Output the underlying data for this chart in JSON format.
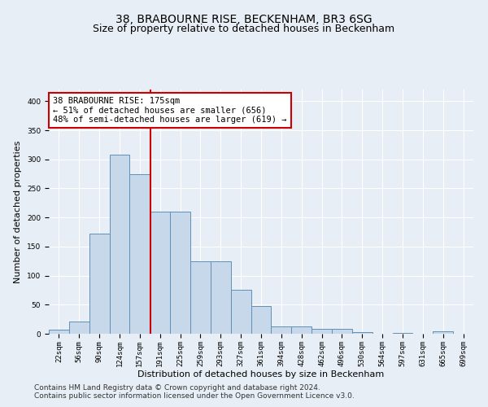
{
  "title": "38, BRABOURNE RISE, BECKENHAM, BR3 6SG",
  "subtitle": "Size of property relative to detached houses in Beckenham",
  "xlabel": "Distribution of detached houses by size in Beckenham",
  "ylabel": "Number of detached properties",
  "bin_labels": [
    "22sqm",
    "56sqm",
    "90sqm",
    "124sqm",
    "157sqm",
    "191sqm",
    "225sqm",
    "259sqm",
    "293sqm",
    "327sqm",
    "361sqm",
    "394sqm",
    "428sqm",
    "462sqm",
    "496sqm",
    "530sqm",
    "564sqm",
    "597sqm",
    "631sqm",
    "665sqm",
    "699sqm"
  ],
  "bar_values": [
    7,
    21,
    172,
    308,
    275,
    210,
    210,
    125,
    125,
    75,
    48,
    13,
    13,
    9,
    9,
    3,
    0,
    2,
    0,
    4,
    0
  ],
  "bar_color": "#c8d8eb",
  "bar_edge_color": "#6090b8",
  "vline_color": "#cc0000",
  "vline_pos": 4.52,
  "annotation_box_text": "38 BRABOURNE RISE: 175sqm\n← 51% of detached houses are smaller (656)\n48% of semi-detached houses are larger (619) →",
  "annotation_box_color": "#cc0000",
  "annotation_box_bg": "#ffffff",
  "ylim": [
    0,
    420
  ],
  "yticks": [
    0,
    50,
    100,
    150,
    200,
    250,
    300,
    350,
    400
  ],
  "footer_line1": "Contains HM Land Registry data © Crown copyright and database right 2024.",
  "footer_line2": "Contains public sector information licensed under the Open Government Licence v3.0.",
  "plot_bg_color": "#e8eef5",
  "fig_bg_color": "#e8eef5",
  "grid_color": "#ffffff",
  "title_fontsize": 10,
  "subtitle_fontsize": 9,
  "axis_label_fontsize": 8,
  "ylabel_fontsize": 8,
  "tick_fontsize": 6.5,
  "annotation_fontsize": 7.5,
  "footer_fontsize": 6.5
}
